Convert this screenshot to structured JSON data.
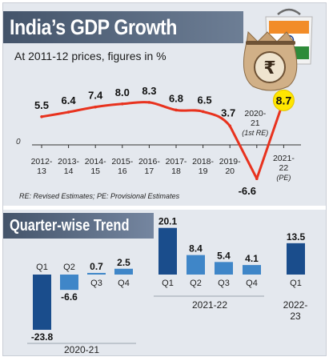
{
  "title": "India’s GDP Growth",
  "subtitle": "At 2011-12 prices, figures in %",
  "note": "RE: Revised Estimates; PE: Provisional Estimates",
  "icon": "money-bag-with-rupee-and-india-flag-icon",
  "colors": {
    "line": "#e8321e",
    "bar_dark": "#1a4d8c",
    "bar_light": "#3f86c8",
    "header": "#44546a",
    "background": "#e4e8ee"
  },
  "chart_data": [
    {
      "type": "line",
      "title": "India’s GDP Growth",
      "subtitle": "At 2011-12 prices, figures in %",
      "xlabel": "",
      "ylabel": "",
      "baseline_label": "0",
      "x": [
        "2012-13",
        "2013-14",
        "2014-15",
        "2015-16",
        "2016-17",
        "2017-18",
        "2018-19",
        "2019-20",
        "2020-21",
        "2021-22"
      ],
      "x_label_lines": [
        [
          "2012-",
          "13"
        ],
        [
          "2013-",
          "14"
        ],
        [
          "2014-",
          "15"
        ],
        [
          "2015-",
          "16"
        ],
        [
          "2016-",
          "17"
        ],
        [
          "2017-",
          "18"
        ],
        [
          "2018-",
          "19"
        ],
        [
          "2019-",
          "20"
        ],
        [
          "2020-",
          "21",
          "(1st RE)"
        ],
        [
          "2021-",
          "22",
          "(PE)"
        ]
      ],
      "values": [
        5.5,
        6.4,
        7.4,
        8.0,
        8.3,
        6.8,
        6.5,
        3.7,
        -6.6,
        8.7
      ],
      "value_labels": [
        "5.5",
        "6.4",
        "7.4",
        "8.0",
        "8.3",
        "6.8",
        "6.5",
        "3.7",
        "-6.6",
        "8.7"
      ],
      "highlight_index": 9,
      "ylim": [
        -6.6,
        8.7
      ],
      "grid": false
    },
    {
      "type": "bar",
      "title": "Quarter-wise Trend",
      "xlabel": "",
      "ylabel": "",
      "groups": [
        {
          "label": "2020-21",
          "bars": [
            {
              "quarter": "Q1",
              "value": -23.8,
              "label": "-23.8",
              "shade": "dark"
            },
            {
              "quarter": "Q2",
              "value": -6.6,
              "label": "-6.6",
              "shade": "light"
            },
            {
              "quarter": "Q3",
              "value": 0.7,
              "label": "0.7",
              "shade": "light"
            },
            {
              "quarter": "Q4",
              "value": 2.5,
              "label": "2.5",
              "shade": "light"
            }
          ]
        },
        {
          "label": "2021-22",
          "bars": [
            {
              "quarter": "Q1",
              "value": 20.1,
              "label": "20.1",
              "shade": "dark"
            },
            {
              "quarter": "Q2",
              "value": 8.4,
              "label": "8.4",
              "shade": "light"
            },
            {
              "quarter": "Q3",
              "value": 5.4,
              "label": "5.4",
              "shade": "light"
            },
            {
              "quarter": "Q4",
              "value": 4.1,
              "label": "4.1",
              "shade": "light"
            }
          ]
        },
        {
          "label": "2022-23",
          "label_lines": [
            "2022-",
            "23"
          ],
          "bars": [
            {
              "quarter": "Q1",
              "value": 13.5,
              "label": "13.5",
              "shade": "dark"
            }
          ]
        }
      ],
      "ylim": [
        -23.8,
        20.1
      ],
      "grid": false
    }
  ]
}
